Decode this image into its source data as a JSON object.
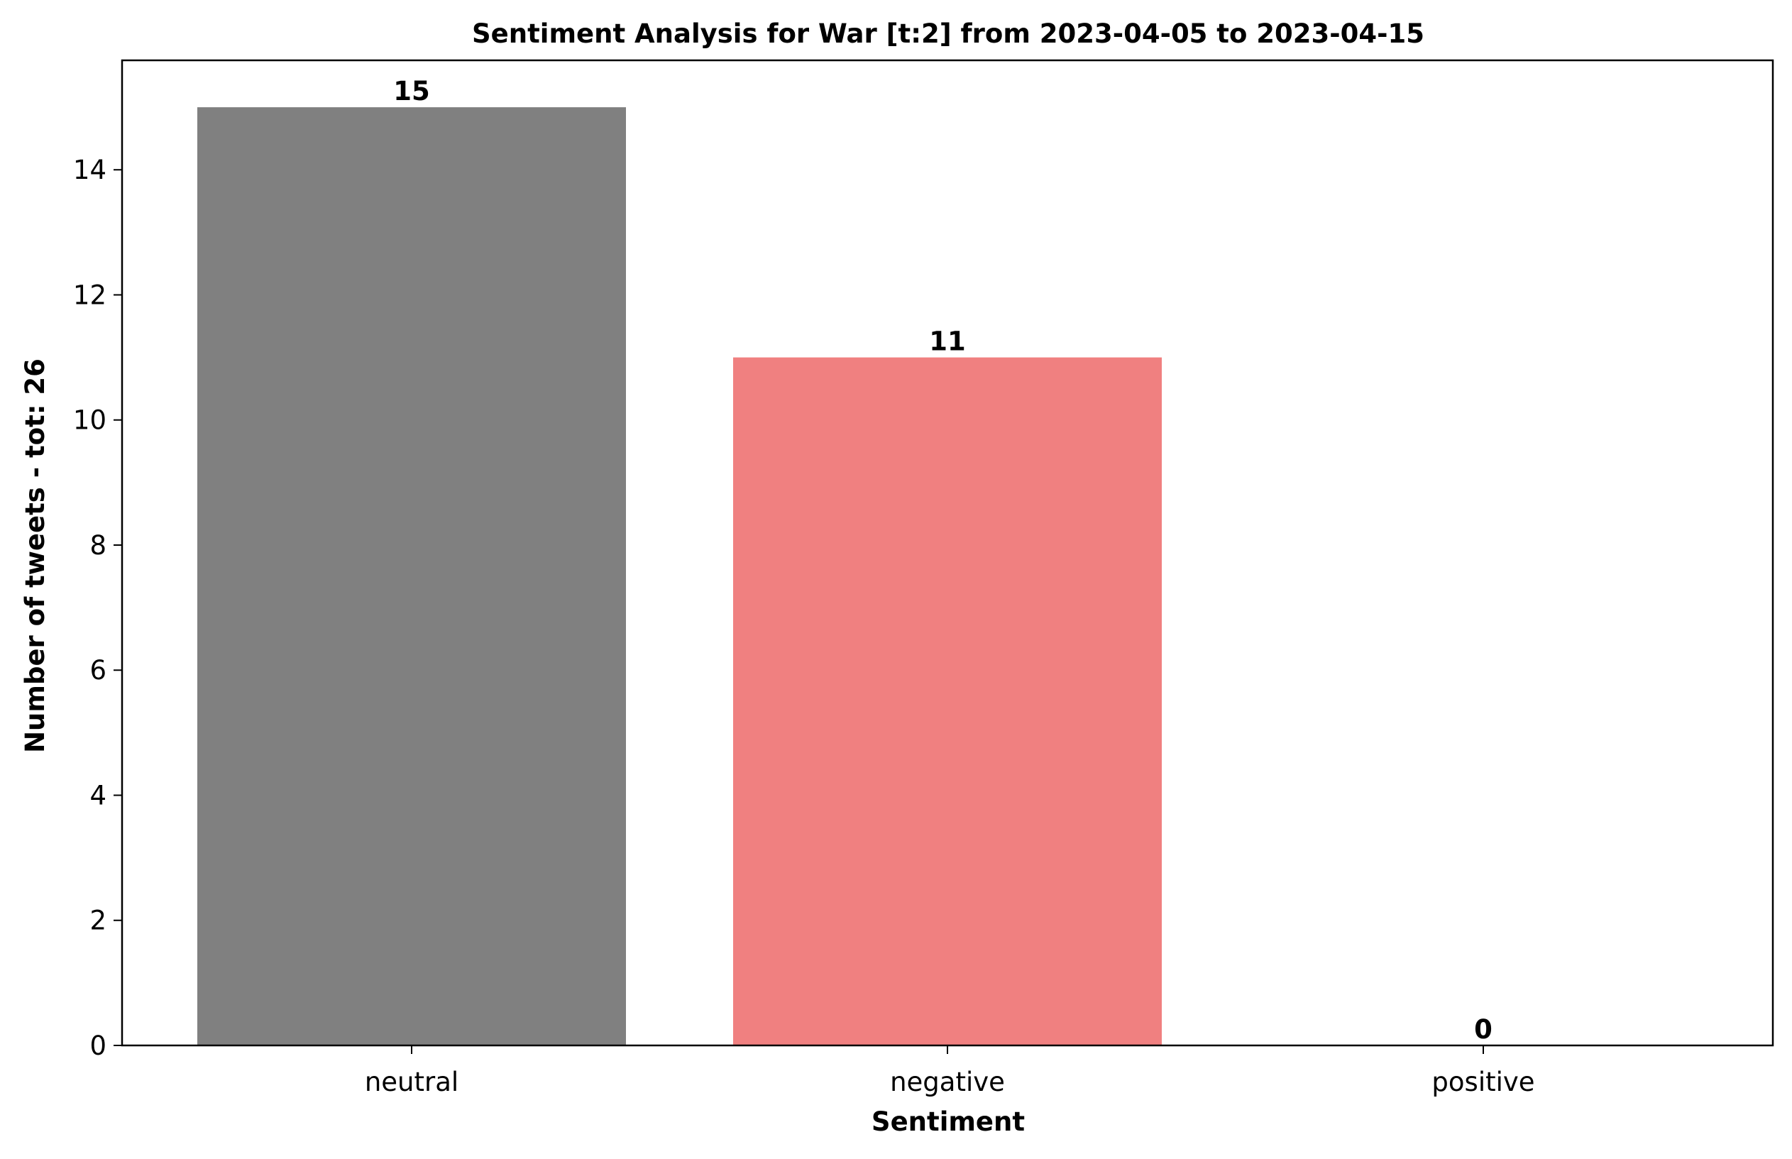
{
  "chart_data": {
    "type": "bar",
    "title": "Sentiment Analysis for War [t:2] from 2023-04-05 to 2023-04-15",
    "xlabel": "Sentiment",
    "ylabel": "Number of tweets - tot: 26",
    "categories": [
      "neutral",
      "negative",
      "positive"
    ],
    "values": [
      15,
      11,
      0
    ],
    "colors": [
      "#808080",
      "#f08080",
      "#90ee90"
    ],
    "ylim": [
      0,
      15.75
    ],
    "yticks": [
      0,
      2,
      4,
      6,
      8,
      10,
      12,
      14
    ],
    "grid": false,
    "legend": "none"
  }
}
